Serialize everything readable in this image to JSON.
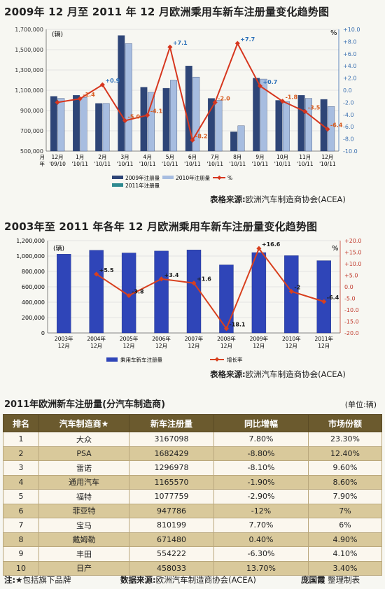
{
  "chart1": {
    "title": "2009年 12 月至 2011 年 12 月欧洲乘用车新车注册量变化趋势图",
    "unit_left": "(辆)",
    "unit_right": "%",
    "source_label": "表格来源:",
    "source_text": "欧洲汽车制造商协会(ACEA)",
    "legend": [
      "2009年注册量",
      "2010年注册量",
      "2011年注册量",
      "%"
    ],
    "colors": {
      "s2009": "#2e4577",
      "s2010": "#a7bde0",
      "s2011": "#2e8a90",
      "line": "#d6361e",
      "label": "#2b6fb8",
      "label_neg": "#d65a1e"
    }
  },
  "chart2": {
    "title": "2003年至 2011 年各年 12 月欧洲乘用车新车注册量变化趋势图",
    "unit_left": "(辆)",
    "unit_right": "%",
    "legend": [
      "乘用车新车注册量",
      "增长率"
    ],
    "source_label": "表格来源:",
    "source_text": "欧洲汽车制造商协会(ACEA)",
    "colors": {
      "bar": "#2f45b8",
      "line": "#d8401e"
    }
  },
  "chart_data": [
    {
      "type": "bar",
      "categories": [
        "12月 '09/10",
        "1月 '10/11",
        "2月 '10/11",
        "3月 '10/11",
        "4月 '10/11",
        "5月 '10/11",
        "6月 '10/11",
        "7月 '10/11",
        "8月 '10/11",
        "9月 '10/11",
        "10月 '10/11",
        "11月 '10/11",
        "12月 '10/11"
      ],
      "x_tick_top": [
        "月",
        "12月",
        "1月",
        "2月",
        "3月",
        "4月",
        "5月",
        "6月",
        "7月",
        "8月",
        "9月",
        "10月",
        "11月",
        "12月"
      ],
      "x_tick_bottom": [
        "年",
        "'09/10",
        "'10/11",
        "'10/11",
        "'10/11",
        "'10/11",
        "'10/11",
        "'10/11",
        "'10/11",
        "'10/11",
        "'10/11",
        "'10/11",
        "'10/11",
        "'10/11"
      ],
      "series": [
        {
          "name": "2009年注册量",
          "values": [
            1040000,
            1050000,
            970000,
            1640000,
            1130000,
            1120000,
            1340000,
            1020000,
            690000,
            1220000,
            1000000,
            1050000,
            1010000
          ]
        },
        {
          "name": "2010年注册量",
          "values": [
            1020000,
            1030000,
            970000,
            1560000,
            1080000,
            1200000,
            1230000,
            1000000,
            750000,
            1210000,
            990000,
            1020000,
            940000
          ]
        },
        {
          "name": "%",
          "axis": "right",
          "values": [
            -2.0,
            -1.4,
            0.9,
            -5.0,
            -4.1,
            7.1,
            -8.2,
            -2.0,
            7.7,
            0.7,
            -1.8,
            -3.5,
            -6.4
          ]
        }
      ],
      "point_labels": [
        "",
        "-1.4",
        "+0.9",
        "-5.0",
        "-4.1",
        "+7.1",
        "-8.2",
        "-2.0",
        "+7.7",
        "+0.7",
        "-1.8",
        "-3.5",
        "-6.4"
      ],
      "ylim": [
        500000,
        1700000
      ],
      "y_ticks": [
        "500,000",
        "700,000",
        "900,000",
        "1,100,000",
        "1,300,000",
        "1,500,000",
        "1,700,000"
      ],
      "y2lim": [
        -10,
        10
      ],
      "y2_ticks": [
        "-10.0",
        "-8.0",
        "-6.0",
        "-4.0",
        "-2.0",
        "0.0",
        "+2.0",
        "+4.0",
        "+6.0",
        "+8.0",
        "+10.0"
      ],
      "legend_position": "bottom"
    },
    {
      "type": "bar",
      "categories": [
        "2003年 12月",
        "2004年 12月",
        "2005年 12月",
        "2006年 12月",
        "2007年 12月",
        "2008年 12月",
        "2009年 12月",
        "2010年 12月",
        "2011年 12月"
      ],
      "x_tick_top": [
        "2003年",
        "2004年",
        "2005年",
        "2006年",
        "2007年",
        "2008年",
        "2009年",
        "2010年",
        "2011年"
      ],
      "x_tick_bottom": [
        "12月",
        "12月",
        "12月",
        "12月",
        "12月",
        "12月",
        "12月",
        "12月",
        "12月"
      ],
      "series": [
        {
          "name": "乘用车新车注册量",
          "values": [
            1025000,
            1075000,
            1040000,
            1065000,
            1080000,
            885000,
            1045000,
            1005000,
            940000
          ]
        },
        {
          "name": "增长率",
          "axis": "right",
          "values": [
            null,
            5.5,
            -3.8,
            3.4,
            1.6,
            -18.1,
            16.6,
            -2.0,
            -6.4
          ]
        }
      ],
      "point_labels": [
        "",
        "+5.5",
        "-3.8",
        "+3.4",
        "+1.6",
        "-18.1",
        "+16.6",
        "-2",
        "-6.4"
      ],
      "ylim": [
        0,
        1200000
      ],
      "y_ticks": [
        "0",
        "200,000",
        "400,000",
        "600,000",
        "800,000",
        "1,000,000",
        "1,200,000"
      ],
      "y2lim": [
        -20,
        20
      ],
      "y2_ticks": [
        "-20.0",
        "-15.0",
        "-10.0",
        "-5.0",
        "0.0",
        "+5.0",
        "+10.0",
        "+15.0",
        "+20.0"
      ],
      "legend_position": "bottom"
    },
    {
      "type": "table",
      "title": "2011年欧洲新车注册量(分汽车制造商)",
      "unit": "(单位:辆)",
      "columns": [
        "排名",
        "汽车制造商★",
        "新车注册量",
        "同比增幅",
        "市场份额"
      ],
      "rows": [
        [
          "1",
          "大众",
          "3167098",
          "7.80%",
          "23.30%"
        ],
        [
          "2",
          "PSA",
          "1682429",
          "-8.80%",
          "12.40%"
        ],
        [
          "3",
          "雷诺",
          "1296978",
          "-8.10%",
          "9.60%"
        ],
        [
          "4",
          "通用汽车",
          "1165570",
          "-1.90%",
          "8.60%"
        ],
        [
          "5",
          "福特",
          "1077759",
          "-2.90%",
          "7.90%"
        ],
        [
          "6",
          "菲亚特",
          "947786",
          "-12%",
          "7%"
        ],
        [
          "7",
          "宝马",
          "810199",
          "7.70%",
          "6%"
        ],
        [
          "8",
          "戴姆勒",
          "671480",
          "0.40%",
          "4.90%"
        ],
        [
          "9",
          "丰田",
          "554222",
          "-6.30%",
          "4.10%"
        ],
        [
          "10",
          "日产",
          "458033",
          "13.70%",
          "3.40%"
        ]
      ]
    }
  ],
  "footer": {
    "note_label": "注:",
    "note_text": "★包括旗下品牌",
    "source_label": "数据来源:",
    "source_text": "欧洲汽车制造商协会(ACEA)",
    "author_name": "庞国霞",
    "author_role": "整理制表"
  }
}
